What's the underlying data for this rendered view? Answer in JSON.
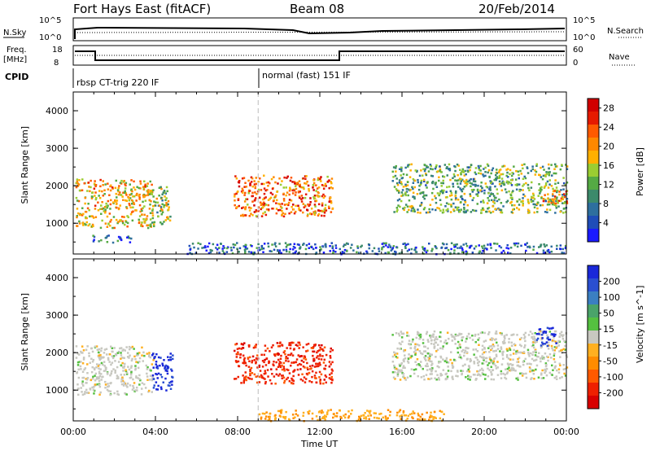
{
  "header": {
    "title": "Fort Hays East (fitACF)",
    "beam": "Beam 08",
    "date": "20/Feb/2014"
  },
  "top_panels": {
    "nsky_label": "N.Sky",
    "nsearch_label": "N.Search",
    "left_ticks": [
      "10^5",
      "10^0"
    ],
    "right_ticks": [
      "10^5",
      "10^0"
    ],
    "freq_label_1": "Freq.",
    "freq_label_2": "[MHz]",
    "freq_ticks": [
      "18",
      "8"
    ],
    "nave_label": "Nave",
    "nave_ticks": [
      "60",
      "0"
    ],
    "cpid_label": "CPID",
    "cpid_1": "rbsp CT-trig 220 IF",
    "cpid_2": "normal (fast) 151 IF"
  },
  "colors": {
    "power": [
      "#1a1aff",
      "#1f4db8",
      "#2e6f9e",
      "#3c8a6b",
      "#55aa44",
      "#9acd32",
      "#ffb000",
      "#ff8800",
      "#ff5a00",
      "#e61a00",
      "#d10000"
    ],
    "velocity": [
      "#1a28d9",
      "#2a4fd0",
      "#3b7fc2",
      "#4aa36a",
      "#55c040",
      "#c8c8c0",
      "#ffb020",
      "#ff8c00",
      "#ff5a00",
      "#ee2000",
      "#d80000"
    ]
  },
  "chart_data": [
    {
      "type": "heatmap",
      "title": "",
      "ylabel": "Slant Range [km]",
      "xlabel": "",
      "x_range": [
        "00:00",
        "24:00"
      ],
      "ylim": [
        180,
        4500
      ],
      "yticks": [
        "1000",
        "2000",
        "3000",
        "4000"
      ],
      "colorbar": {
        "label": "Power [dB]",
        "ticks": [
          "4",
          "8",
          "12",
          "16",
          "20",
          "24",
          "28"
        ],
        "range": [
          0,
          30
        ]
      },
      "regions": [
        {
          "t0": 0.1,
          "t1": 3.9,
          "r0": 900,
          "r1": 2200,
          "level": 18
        },
        {
          "t0": 0.9,
          "t1": 2.8,
          "r0": 500,
          "r1": 700,
          "level": 6
        },
        {
          "t0": 3.7,
          "t1": 4.7,
          "r0": 1000,
          "r1": 2000,
          "level": 14
        },
        {
          "t0": 7.8,
          "t1": 12.6,
          "r0": 1200,
          "r1": 2300,
          "level": 22
        },
        {
          "t0": 15.5,
          "t1": 24.0,
          "r0": 1300,
          "r1": 2600,
          "level": 12
        },
        {
          "t0": 22.8,
          "t1": 24.0,
          "r0": 1500,
          "r1": 1900,
          "level": 20
        },
        {
          "t0": 5.5,
          "t1": 24.0,
          "r0": 200,
          "r1": 500,
          "level": 6
        }
      ]
    },
    {
      "type": "heatmap",
      "title": "",
      "ylabel": "Slant Range [km]",
      "xlabel": "Time UT",
      "x_range": [
        "00:00",
        "24:00"
      ],
      "xticks": [
        "00:00",
        "04:00",
        "08:00",
        "12:00",
        "16:00",
        "20:00",
        "00:00"
      ],
      "ylim": [
        180,
        4500
      ],
      "yticks": [
        "1000",
        "2000",
        "3000",
        "4000"
      ],
      "colorbar": {
        "label": "Velocity [m s^-1]",
        "ticks": [
          "200",
          "100",
          "50",
          "15",
          "-15",
          "-50",
          "-100",
          "-200"
        ],
        "range": [
          -250,
          250
        ]
      },
      "regions": [
        {
          "t0": 0.1,
          "t1": 3.9,
          "r0": 900,
          "r1": 2200,
          "velocity": 0
        },
        {
          "t0": 3.8,
          "t1": 4.8,
          "r0": 1000,
          "r1": 2000,
          "velocity": 220
        },
        {
          "t0": 7.8,
          "t1": 12.6,
          "r0": 1200,
          "r1": 2300,
          "velocity": -180
        },
        {
          "t0": 15.5,
          "t1": 24.0,
          "r0": 1300,
          "r1": 2600,
          "velocity": 0
        },
        {
          "t0": 22.5,
          "t1": 23.5,
          "r0": 2200,
          "r1": 2700,
          "velocity": 200
        },
        {
          "t0": 9.0,
          "t1": 18.0,
          "r0": 200,
          "r1": 500,
          "velocity": -60
        }
      ]
    }
  ]
}
